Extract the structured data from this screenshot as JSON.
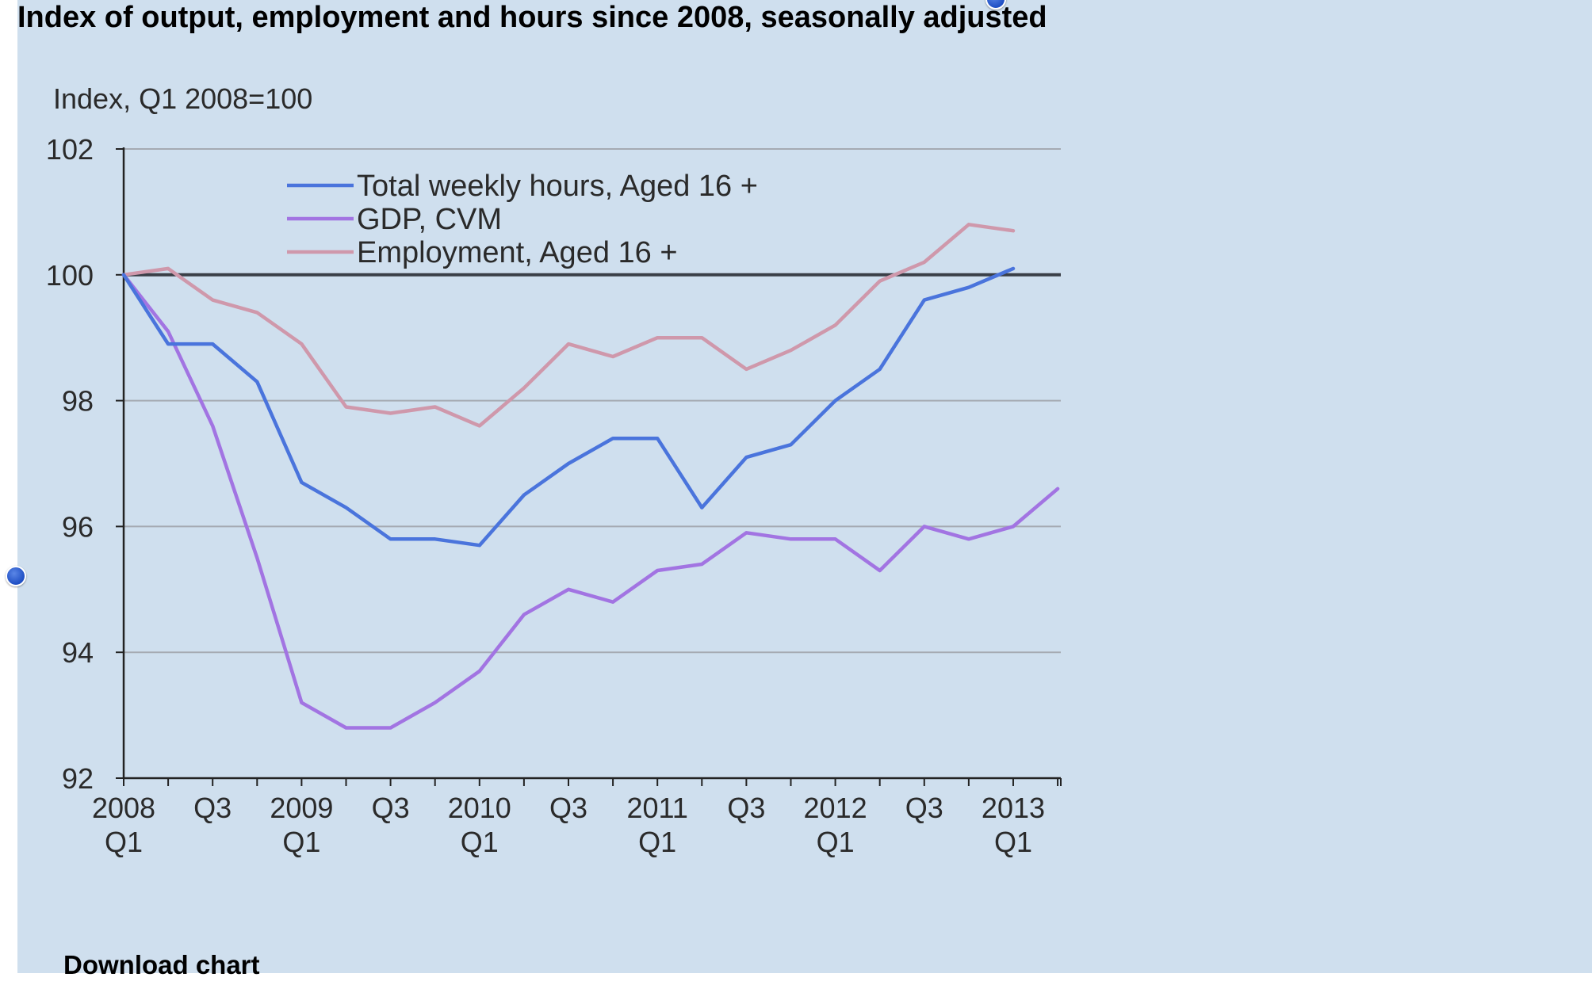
{
  "page_title": "Index of output, employment and hours since 2008, seasonally adjusted",
  "download_label": "Download chart",
  "colors": {
    "background": "#cfdfee",
    "hours": "#4a74dc",
    "gdp": "#a274e2",
    "employment": "#cf98ab",
    "baseline": "#3a3f47",
    "grid": "#a5aab2"
  },
  "chart_data": {
    "type": "line",
    "ylabel": "Index, Q1 2008=100",
    "ylim": [
      92,
      102
    ],
    "yticks": [
      92,
      94,
      96,
      98,
      100,
      102
    ],
    "reference_line": 100,
    "grid": true,
    "legend_position": "top-left",
    "x": [
      "2008 Q1",
      "2008 Q2",
      "2008 Q3",
      "2008 Q4",
      "2009 Q1",
      "2009 Q2",
      "2009 Q3",
      "2009 Q4",
      "2010 Q1",
      "2010 Q2",
      "2010 Q3",
      "2010 Q4",
      "2011 Q1",
      "2011 Q2",
      "2011 Q3",
      "2011 Q4",
      "2012 Q1",
      "2012 Q2",
      "2012 Q3",
      "2012 Q4",
      "2013 Q1",
      "2013 Q2"
    ],
    "xtick_labels": [
      {
        "top": "2008",
        "bottom": "Q1"
      },
      {
        "top": "",
        "bottom": ""
      },
      {
        "top": "Q3",
        "bottom": ""
      },
      {
        "top": "",
        "bottom": ""
      },
      {
        "top": "2009",
        "bottom": "Q1"
      },
      {
        "top": "",
        "bottom": ""
      },
      {
        "top": "Q3",
        "bottom": ""
      },
      {
        "top": "",
        "bottom": ""
      },
      {
        "top": "2010",
        "bottom": "Q1"
      },
      {
        "top": "",
        "bottom": ""
      },
      {
        "top": "Q3",
        "bottom": ""
      },
      {
        "top": "",
        "bottom": ""
      },
      {
        "top": "2011",
        "bottom": "Q1"
      },
      {
        "top": "",
        "bottom": ""
      },
      {
        "top": "Q3",
        "bottom": ""
      },
      {
        "top": "",
        "bottom": ""
      },
      {
        "top": "2012",
        "bottom": "Q1"
      },
      {
        "top": "",
        "bottom": ""
      },
      {
        "top": "Q3",
        "bottom": ""
      },
      {
        "top": "",
        "bottom": ""
      },
      {
        "top": "2013",
        "bottom": "Q1"
      },
      {
        "top": "",
        "bottom": ""
      }
    ],
    "series": [
      {
        "name": "Total weekly  hours, Aged 16 +",
        "color": "#4a74dc",
        "values": [
          100.0,
          98.9,
          98.9,
          98.3,
          96.7,
          96.3,
          95.8,
          95.8,
          95.7,
          96.5,
          97.0,
          97.4,
          97.4,
          96.3,
          97.1,
          97.3,
          98.0,
          98.5,
          99.6,
          99.8,
          100.1,
          null
        ]
      },
      {
        "name": "GDP, CVM",
        "color": "#a274e2",
        "values": [
          100.0,
          99.1,
          97.6,
          95.5,
          93.2,
          92.8,
          92.8,
          93.2,
          93.7,
          94.6,
          95.0,
          94.8,
          95.3,
          95.4,
          95.9,
          95.8,
          95.8,
          95.3,
          96.0,
          95.8,
          96.0,
          96.6
        ]
      },
      {
        "name": "Employment, Aged 16 +",
        "color": "#cf98ab",
        "values": [
          100.0,
          100.1,
          99.6,
          99.4,
          98.9,
          97.9,
          97.8,
          97.9,
          97.6,
          98.2,
          98.9,
          98.7,
          99.0,
          99.0,
          98.5,
          98.8,
          99.2,
          99.9,
          100.2,
          100.8,
          100.7,
          null
        ]
      }
    ]
  }
}
